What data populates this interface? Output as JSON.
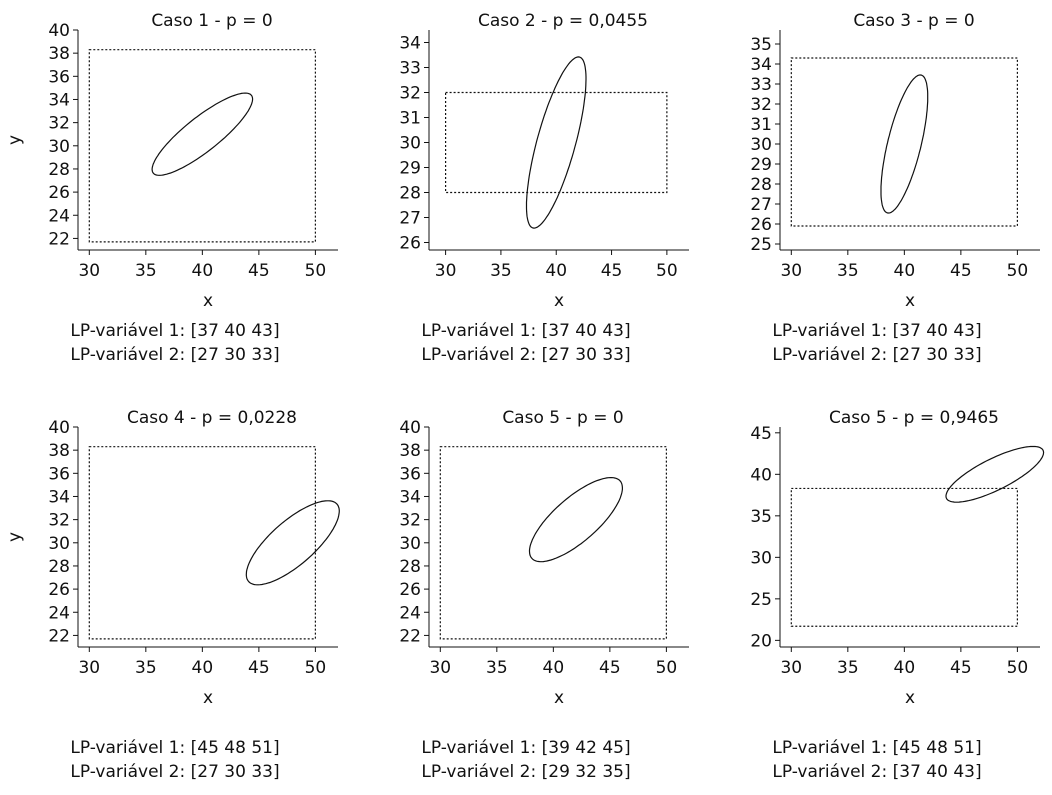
{
  "chart_data": [
    {
      "type": "scatter",
      "title": "Caso 1 - p = 0",
      "xlabel": "x",
      "ylabel": "y",
      "xlim": [
        29,
        52
      ],
      "ylim": [
        21,
        40
      ],
      "xticks": [
        30,
        35,
        40,
        45,
        50
      ],
      "yticks": [
        22,
        24,
        26,
        28,
        30,
        32,
        34,
        36,
        38,
        40
      ],
      "region": {
        "x": [
          30,
          50
        ],
        "y": [
          21.7,
          38.3
        ]
      },
      "ellipse": {
        "center": [
          40,
          31
        ],
        "axis1": [
          4.35,
          3.35
        ],
        "axis2": [
          -0.91,
          1.18
        ]
      },
      "caption": [
        "LP-variável 1: [37 40 43]",
        "LP-variável 2: [27 30 33]"
      ]
    },
    {
      "type": "scatter",
      "title": "Caso 2 - p = 0,0455",
      "xlabel": "x",
      "ylabel": "",
      "xlim": [
        28.5,
        52
      ],
      "ylim": [
        25.7,
        34.5
      ],
      "xticks": [
        30,
        35,
        40,
        45,
        50
      ],
      "yticks": [
        26,
        27,
        28,
        29,
        30,
        31,
        32,
        33,
        34
      ],
      "region": {
        "x": [
          30,
          50
        ],
        "y": [
          28,
          32
        ]
      },
      "ellipse": {
        "center": [
          40,
          30
        ],
        "axis1": [
          2.2,
          3.4
        ],
        "axis2": [
          -1.55,
          0.4
        ]
      },
      "caption": [
        "LP-variável 1: [37 40 43]",
        "LP-variável 2: [27 30 33]"
      ]
    },
    {
      "type": "scatter",
      "title": "Caso 3 - p = 0",
      "xlabel": "x",
      "ylabel": "",
      "xlim": [
        29,
        52
      ],
      "ylim": [
        24.7,
        35.7
      ],
      "xticks": [
        30,
        35,
        40,
        45,
        50
      ],
      "yticks": [
        25,
        26,
        27,
        28,
        29,
        30,
        31,
        32,
        33,
        34,
        35
      ],
      "region": {
        "x": [
          30,
          50
        ],
        "y": [
          25.9,
          34.3
        ]
      },
      "ellipse": {
        "center": [
          40,
          30
        ],
        "axis1": [
          1.65,
          3.4
        ],
        "axis2": [
          -1.25,
          0.6
        ]
      },
      "caption": [
        "LP-variável 1: [37 40 43]",
        "LP-variável 2: [27 30 33]"
      ]
    },
    {
      "type": "scatter",
      "title": "Caso 4 - p = 0,0228",
      "xlabel": "x",
      "ylabel": "y",
      "xlim": [
        29,
        52
      ],
      "ylim": [
        21,
        40
      ],
      "xticks": [
        30,
        35,
        40,
        45,
        50
      ],
      "yticks": [
        22,
        24,
        26,
        28,
        30,
        32,
        34,
        36,
        38,
        40
      ],
      "region": {
        "x": [
          30,
          50
        ],
        "y": [
          21.7,
          38.3
        ]
      },
      "ellipse": {
        "center": [
          48,
          30
        ],
        "axis1": [
          3.9,
          3.35
        ],
        "axis2": [
          -1.3,
          1.4
        ]
      },
      "caption": [
        "LP-variável 1: [45 48 51]",
        "LP-variável 2: [27 30 33]"
      ]
    },
    {
      "type": "scatter",
      "title": "Caso 5 - p = 0",
      "xlabel": "x",
      "ylabel": "",
      "xlim": [
        29,
        52
      ],
      "ylim": [
        21,
        40
      ],
      "xticks": [
        30,
        35,
        40,
        45,
        50
      ],
      "yticks": [
        22,
        24,
        26,
        28,
        30,
        32,
        34,
        36,
        38,
        40
      ],
      "region": {
        "x": [
          30,
          50
        ],
        "y": [
          21.7,
          38.3
        ]
      },
      "ellipse": {
        "center": [
          42,
          32
        ],
        "axis1": [
          3.9,
          3.35
        ],
        "axis2": [
          -1.3,
          1.4
        ]
      },
      "caption": [
        "LP-variável 1: [39 42 45]",
        "LP-variável 2: [29 32 35]"
      ]
    },
    {
      "type": "scatter",
      "title": "Caso 5 - p = 0,9465",
      "xlabel": "x",
      "ylabel": "",
      "xlim": [
        29,
        52
      ],
      "ylim": [
        19.2,
        45.7
      ],
      "xticks": [
        30,
        35,
        40,
        45,
        50
      ],
      "yticks": [
        20,
        25,
        30,
        35,
        40,
        45
      ],
      "region": {
        "x": [
          30,
          50
        ],
        "y": [
          21.7,
          38.3
        ]
      },
      "ellipse": {
        "center": [
          48,
          40
        ],
        "axis1": [
          4.25,
          2.95
        ],
        "axis2": [
          -0.75,
          1.6
        ]
      },
      "caption": [
        "LP-variável 1: [45 48 51]",
        "LP-variável 2: [37 40 43]"
      ]
    }
  ]
}
